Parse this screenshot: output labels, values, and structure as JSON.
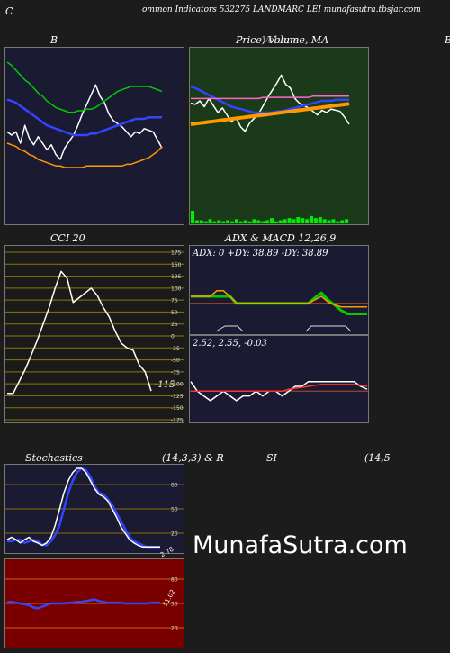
{
  "header": {
    "left": "C",
    "title": "ommon  Indicators 532275 LANDMARC LEI munafasutra.tbsjar.com"
  },
  "panels": {
    "bb": {
      "label": "B"
    },
    "price": {
      "label": "Price,  Volume,  MA",
      "overlay": "Volume",
      "right_edge": "B"
    },
    "cci": {
      "label": "CCI 20",
      "current": "-115"
    },
    "adx": {
      "label": "ADX  & MACD 12,26,9",
      "readout": "ADX: 0   +DY: 38.89 -DY: 38.89"
    },
    "macd": {
      "readout": "2.52,  2.55,  -0.03"
    },
    "stoch": {
      "label_left": "Stochastics",
      "label_mid": "(14,3,3) & R",
      "current": "2.78"
    },
    "rsi": {
      "label_left": "SI",
      "label_right": "(14,5",
      "current": "51.02"
    }
  },
  "watermark": "MunafaSutra.com",
  "colors": {
    "bg": "#1c1c1c",
    "navy": "#1a1a33",
    "green_panel": "#1a3a1a",
    "darkred": "#7a0000"
  },
  "chart_data": [
    {
      "type": "line",
      "id": "bollinger",
      "x": [
        0,
        1,
        2,
        3,
        4,
        5,
        6,
        7,
        8,
        9,
        10,
        11,
        12,
        13,
        14,
        15,
        16,
        17,
        18,
        19,
        20,
        21,
        22,
        23,
        24,
        25,
        26,
        27,
        28,
        29,
        30,
        31,
        32,
        33,
        34,
        35
      ],
      "series": [
        {
          "color": "white",
          "values": [
            52,
            50,
            52,
            45,
            56,
            48,
            44,
            49,
            45,
            41,
            44,
            38,
            35,
            42,
            46,
            50,
            56,
            63,
            69,
            75,
            81,
            74,
            70,
            63,
            59,
            57,
            55,
            52,
            49,
            52,
            51,
            54,
            53,
            52,
            47,
            42
          ]
        },
        {
          "color": "green",
          "values": [
            95,
            93,
            90,
            87,
            84,
            82,
            79,
            76,
            74,
            71,
            69,
            67,
            66,
            65,
            64,
            64,
            65,
            65,
            66,
            66,
            67,
            69,
            71,
            73,
            75,
            77,
            78,
            79,
            80,
            80,
            80,
            80,
            80,
            79,
            78,
            77
          ]
        },
        {
          "color": "blue",
          "values": [
            72,
            71,
            70,
            68,
            66,
            64,
            62,
            60,
            58,
            56,
            55,
            54,
            53,
            52,
            51,
            50,
            50,
            50,
            50,
            51,
            51,
            52,
            53,
            54,
            55,
            56,
            57,
            58,
            59,
            60,
            60,
            60,
            61,
            61,
            61,
            61
          ]
        },
        {
          "color": "orange",
          "values": [
            45,
            44,
            43,
            41,
            40,
            38,
            37,
            35,
            34,
            33,
            32,
            31,
            31,
            30,
            30,
            30,
            30,
            30,
            31,
            31,
            31,
            31,
            31,
            31,
            31,
            31,
            31,
            32,
            32,
            33,
            34,
            35,
            36,
            38,
            40,
            43
          ]
        }
      ]
    },
    {
      "type": "line",
      "id": "price",
      "x": [
        0,
        1,
        2,
        3,
        4,
        5,
        6,
        7,
        8,
        9,
        10,
        11,
        12,
        13,
        14,
        15,
        16,
        17,
        18,
        19,
        20,
        21,
        22,
        23,
        24,
        25,
        26,
        27,
        28,
        29,
        30,
        31,
        32,
        33,
        34,
        35
      ],
      "series": [
        {
          "color": "white",
          "values": [
            58,
            57,
            60,
            55,
            62,
            56,
            50,
            54,
            48,
            42,
            46,
            38,
            34,
            41,
            45,
            49,
            56,
            63,
            69,
            75,
            82,
            74,
            71,
            62,
            58,
            56,
            54,
            51,
            48,
            52,
            50,
            53,
            52,
            51,
            46,
            40
          ]
        },
        {
          "color": "blue",
          "values": [
            72,
            71,
            69,
            67,
            65,
            63,
            61,
            59,
            57,
            55,
            54,
            53,
            52,
            51,
            50,
            50,
            50,
            50,
            50,
            51,
            51,
            52,
            53,
            54,
            55,
            56,
            57,
            58,
            59,
            60,
            60,
            60,
            61,
            61,
            61,
            61
          ]
        },
        {
          "color": "orange",
          "values": [
            40,
            40.5,
            41,
            41.5,
            42,
            42.5,
            43,
            43.5,
            44,
            44.5,
            45,
            45.5,
            46,
            46.5,
            47,
            47.5,
            48,
            48.5,
            49,
            49.5,
            50,
            50.5,
            51,
            51.5,
            52,
            52.5,
            53,
            53.5,
            54,
            54.5,
            55,
            55.5,
            56,
            56.5,
            57,
            57.5
          ]
        },
        {
          "color": "pink",
          "values": [
            62,
            62,
            62,
            62,
            62,
            62,
            62,
            62,
            62,
            62,
            62,
            62,
            62,
            62,
            62,
            62,
            63,
            63,
            63,
            63,
            63,
            63,
            63,
            63,
            63,
            63,
            63,
            64,
            64,
            64,
            64,
            64,
            64,
            64,
            64,
            64
          ]
        }
      ],
      "volume": [
        12,
        3,
        3,
        2,
        4,
        2,
        3,
        2,
        3,
        2,
        4,
        2,
        3,
        2,
        4,
        3,
        2,
        3,
        5,
        2,
        3,
        4,
        5,
        4,
        6,
        5,
        4,
        7,
        5,
        6,
        4,
        3,
        4,
        2,
        3,
        4
      ]
    },
    {
      "type": "line",
      "id": "cci",
      "ylim": [
        -175,
        175
      ],
      "ticks": [
        175,
        150,
        125,
        100,
        75,
        50,
        25,
        0,
        -25,
        -50,
        -75,
        -100,
        -125,
        -150,
        -175
      ],
      "x": [
        0,
        1,
        2,
        3,
        4,
        5,
        6,
        7,
        8,
        9,
        10,
        11,
        12,
        13,
        14,
        15,
        16,
        17,
        18,
        19,
        20,
        21,
        22,
        23,
        24
      ],
      "series": [
        {
          "color": "white",
          "values": [
            -120,
            -120,
            -95,
            -70,
            -40,
            -10,
            25,
            60,
            100,
            135,
            120,
            70,
            80,
            90,
            100,
            85,
            60,
            40,
            10,
            -15,
            -25,
            -30,
            -60,
            -75,
            -115
          ]
        }
      ]
    },
    {
      "type": "line",
      "id": "adx",
      "x": [
        0,
        1,
        2,
        3,
        4,
        5,
        6,
        7,
        8,
        9,
        10,
        11,
        12,
        13,
        14,
        15,
        16,
        17,
        18,
        19,
        20,
        21,
        22,
        23,
        24,
        25,
        26,
        27
      ],
      "series": [
        {
          "color": "green",
          "values": [
            50,
            50,
            50,
            50,
            50,
            50,
            50,
            40,
            40,
            40,
            40,
            40,
            40,
            40,
            40,
            40,
            40,
            40,
            40,
            48,
            55,
            45,
            38,
            30,
            25,
            25,
            25,
            25
          ]
        },
        {
          "color": "orange",
          "values": [
            50,
            50,
            50,
            50,
            58,
            58,
            50,
            40,
            40,
            40,
            40,
            40,
            40,
            40,
            40,
            40,
            40,
            40,
            40,
            45,
            50,
            42,
            38,
            35,
            35,
            35,
            35,
            35
          ]
        }
      ]
    },
    {
      "type": "line",
      "id": "macd",
      "x": [
        0,
        1,
        2,
        3,
        4,
        5,
        6,
        7,
        8,
        9,
        10,
        11,
        12,
        13,
        14,
        15,
        16,
        17,
        18,
        19,
        20,
        21,
        22,
        23,
        24,
        25,
        26,
        27
      ],
      "series": [
        {
          "color": "white",
          "values": [
            2.6,
            2.5,
            2.45,
            2.4,
            2.45,
            2.5,
            2.45,
            2.4,
            2.45,
            2.45,
            2.5,
            2.45,
            2.5,
            2.5,
            2.45,
            2.5,
            2.55,
            2.55,
            2.6,
            2.6,
            2.6,
            2.6,
            2.6,
            2.6,
            2.6,
            2.6,
            2.55,
            2.52
          ]
        },
        {
          "color": "red",
          "values": [
            2.5,
            2.5,
            2.5,
            2.5,
            2.5,
            2.5,
            2.5,
            2.5,
            2.5,
            2.5,
            2.5,
            2.5,
            2.5,
            2.5,
            2.5,
            2.52,
            2.53,
            2.54,
            2.55,
            2.56,
            2.57,
            2.57,
            2.57,
            2.57,
            2.57,
            2.57,
            2.56,
            2.55
          ]
        }
      ]
    },
    {
      "type": "line",
      "id": "stochastic",
      "ylim": [
        0,
        100
      ],
      "ticks": [
        80,
        50,
        20
      ],
      "x": [
        0,
        1,
        2,
        3,
        4,
        5,
        6,
        7,
        8,
        9,
        10,
        11,
        12,
        13,
        14,
        15,
        16,
        17,
        18,
        19,
        20,
        21,
        22,
        23,
        24,
        25,
        26,
        27,
        28,
        29,
        30,
        31,
        32,
        33,
        34,
        35
      ],
      "series": [
        {
          "color": "blue",
          "values": [
            10,
            10,
            12,
            12,
            8,
            10,
            12,
            10,
            6,
            5,
            10,
            18,
            30,
            50,
            70,
            85,
            95,
            100,
            98,
            90,
            78,
            70,
            68,
            62,
            55,
            45,
            35,
            25,
            15,
            10,
            8,
            5,
            3,
            3,
            3,
            3
          ]
        },
        {
          "color": "white",
          "values": [
            12,
            15,
            12,
            8,
            12,
            15,
            10,
            8,
            5,
            8,
            15,
            30,
            50,
            70,
            85,
            95,
            100,
            100,
            95,
            85,
            75,
            68,
            65,
            60,
            50,
            40,
            28,
            20,
            12,
            8,
            5,
            3,
            3,
            3,
            3,
            3
          ]
        }
      ]
    },
    {
      "type": "line",
      "id": "rsi",
      "ylim": [
        0,
        100
      ],
      "ticks": [
        80,
        50,
        20
      ],
      "x": [
        0,
        1,
        2,
        3,
        4,
        5,
        6,
        7,
        8,
        9,
        10,
        11,
        12,
        13,
        14,
        15,
        16,
        17,
        18,
        19,
        20,
        21,
        22,
        23,
        24,
        25,
        26,
        27,
        28,
        29,
        30,
        31,
        32,
        33,
        34,
        35
      ],
      "series": [
        {
          "color": "blue",
          "values": [
            52,
            52,
            51,
            50,
            49,
            48,
            45,
            44,
            46,
            48,
            50,
            50,
            50,
            50,
            51,
            51,
            52,
            52,
            53,
            54,
            55,
            53,
            52,
            51,
            51,
            51,
            51,
            50,
            50,
            50,
            50,
            50,
            50,
            51,
            51,
            51
          ]
        }
      ]
    }
  ]
}
